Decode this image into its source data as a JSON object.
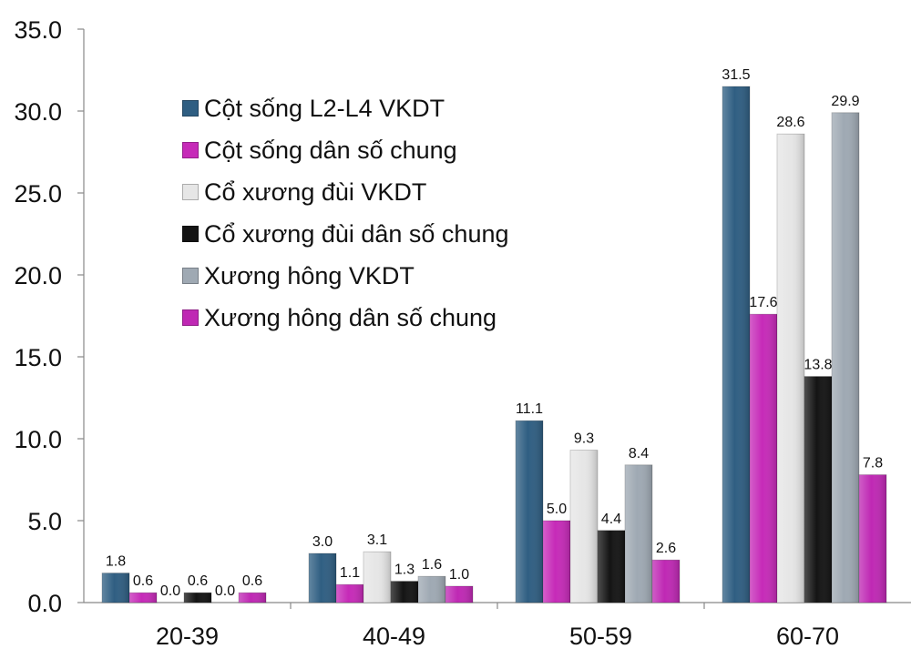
{
  "chart_data": {
    "type": "bar",
    "categories": [
      "20-39",
      "40-49",
      "50-59",
      "60-70"
    ],
    "ylim": [
      0,
      35
    ],
    "y_ticks": [
      "0.0",
      "5.0",
      "10.0",
      "15.0",
      "20.0",
      "25.0",
      "30.0",
      "35.0"
    ],
    "grid": false,
    "legend_position": "top-left",
    "series": [
      {
        "name": "Cột sống L2-L4 VKDT",
        "color": "#2f5e82",
        "values": [
          1.8,
          3.0,
          11.1,
          31.5
        ],
        "labels": [
          "1.8",
          "3.0",
          "11.1",
          "31.5"
        ]
      },
      {
        "name": "Cột sống dân số chung",
        "color": "#c62ab8",
        "values": [
          0.6,
          1.1,
          5.0,
          17.6
        ],
        "labels": [
          "0.6",
          "1.1",
          "5.0",
          "17.6"
        ]
      },
      {
        "name": "Cổ xương đùi VKDT",
        "color": "#e6e6e6",
        "values": [
          0.0,
          3.1,
          9.3,
          28.6
        ],
        "labels": [
          "0.0",
          "3.1",
          "9.3",
          "28.6"
        ]
      },
      {
        "name": "Cổ xương đùi dân số chung",
        "color": "#141414",
        "values": [
          0.6,
          1.3,
          4.4,
          13.8
        ],
        "labels": [
          "0.6",
          "1.3",
          "4.4",
          "13.8"
        ]
      },
      {
        "name": "Xương hông VKDT",
        "color": "#9fa9b3",
        "values": [
          0.0,
          1.6,
          8.4,
          29.9
        ],
        "labels": [
          "0.0",
          "1.6",
          "8.4",
          "29.9"
        ]
      },
      {
        "name": "Xương hông dân số chung",
        "color": "#bf28b4",
        "values": [
          0.6,
          1.0,
          2.6,
          7.8
        ],
        "labels": [
          "0.6",
          "1.0",
          "2.6",
          "7.8"
        ]
      }
    ]
  }
}
